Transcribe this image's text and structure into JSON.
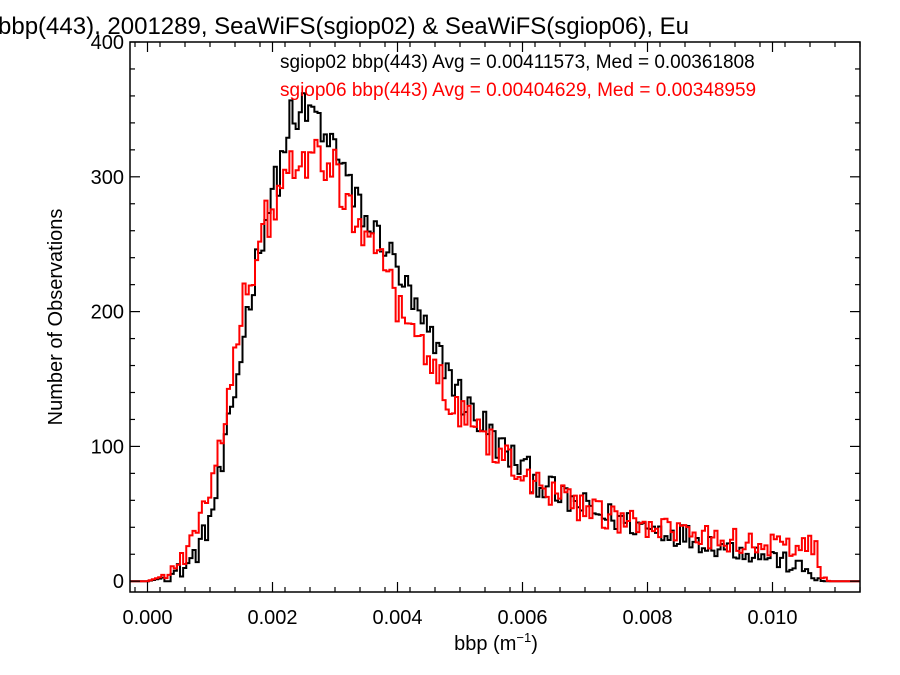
{
  "chart_data": {
    "type": "line",
    "style": "step-histogram",
    "title": "bbp(443), 2001289, SeaWiFS(sgiop02) & SeaWiFS(sgiop06), Eu",
    "xlabel_main": "bbp (m",
    "xlabel_sup": "−1",
    "xlabel_close": ")",
    "ylabel": "Number of Observations",
    "xlim": [
      -0.00028,
      0.0114
    ],
    "ylim": [
      -8,
      400
    ],
    "xticks": [
      0.0,
      0.002,
      0.004,
      0.006,
      0.008,
      0.01
    ],
    "xtick_labels": [
      "0.000",
      "0.002",
      "0.004",
      "0.006",
      "0.008",
      "0.010"
    ],
    "yticks": [
      0,
      100,
      200,
      300,
      400
    ],
    "ytick_labels": [
      "0",
      "100",
      "200",
      "300",
      "400"
    ],
    "grid": false,
    "legend_position": "top-right",
    "legend": [
      "sgiop02 bbp(443) Avg = 0.00411573, Med = 0.00361808",
      "sgiop06 bbp(443) Avg = 0.00404629, Med = 0.00348959"
    ],
    "series": [
      {
        "name": "sgiop02",
        "color": "#000000",
        "x": [
          -0.0003,
          0.0,
          0.0002,
          0.0004,
          0.0006,
          0.0008,
          0.001,
          0.0012,
          0.0014,
          0.0016,
          0.0018,
          0.002,
          0.0021,
          0.0022,
          0.0023,
          0.0024,
          0.0025,
          0.0026,
          0.0027,
          0.0028,
          0.0029,
          0.003,
          0.0031,
          0.0032,
          0.0033,
          0.0034,
          0.0035,
          0.0036,
          0.0037,
          0.0038,
          0.0039,
          0.004,
          0.0042,
          0.0044,
          0.0046,
          0.0048,
          0.005,
          0.0052,
          0.0054,
          0.0056,
          0.0058,
          0.006,
          0.0062,
          0.0064,
          0.0066,
          0.0068,
          0.007,
          0.0072,
          0.0074,
          0.0076,
          0.0078,
          0.008,
          0.0082,
          0.0084,
          0.0086,
          0.0088,
          0.009,
          0.0092,
          0.0094,
          0.0096,
          0.0098,
          0.01,
          0.0102,
          0.0104,
          0.0106,
          0.0107,
          0.0108,
          0.011,
          0.0114
        ],
        "values": [
          0,
          0,
          2,
          5,
          10,
          22,
          45,
          85,
          140,
          200,
          250,
          290,
          300,
          325,
          345,
          330,
          360,
          340,
          350,
          330,
          320,
          330,
          310,
          300,
          280,
          280,
          265,
          262,
          255,
          252,
          240,
          232,
          210,
          190,
          172,
          158,
          138,
          125,
          115,
          102,
          92,
          85,
          75,
          70,
          62,
          58,
          55,
          50,
          48,
          45,
          42,
          40,
          38,
          36,
          34,
          31,
          28,
          26,
          24,
          22,
          20,
          18,
          14,
          10,
          7,
          4,
          0,
          0,
          0
        ]
      },
      {
        "name": "sgiop06",
        "color": "#ff0000",
        "x": [
          -0.0003,
          0.0,
          0.0002,
          0.0004,
          0.0006,
          0.0008,
          0.001,
          0.0012,
          0.0014,
          0.0016,
          0.0017,
          0.0018,
          0.0019,
          0.002,
          0.0021,
          0.0022,
          0.0023,
          0.0024,
          0.0025,
          0.0026,
          0.0027,
          0.0028,
          0.0029,
          0.003,
          0.0031,
          0.0032,
          0.0033,
          0.0034,
          0.0035,
          0.0036,
          0.0037,
          0.0038,
          0.0039,
          0.004,
          0.0042,
          0.0044,
          0.0046,
          0.0048,
          0.005,
          0.0052,
          0.0054,
          0.0056,
          0.0058,
          0.006,
          0.0062,
          0.0064,
          0.0066,
          0.0068,
          0.007,
          0.0072,
          0.0074,
          0.0076,
          0.0078,
          0.008,
          0.0082,
          0.0084,
          0.0086,
          0.0088,
          0.009,
          0.0092,
          0.0094,
          0.0096,
          0.0098,
          0.01,
          0.0102,
          0.0104,
          0.0106,
          0.0107,
          0.0108,
          0.0109,
          0.011,
          0.0114
        ],
        "values": [
          0,
          0,
          3,
          8,
          18,
          40,
          70,
          115,
          170,
          225,
          232,
          255,
          270,
          262,
          290,
          298,
          310,
          295,
          315,
          305,
          318,
          300,
          308,
          315,
          280,
          290,
          268,
          262,
          262,
          250,
          245,
          232,
          222,
          205,
          190,
          170,
          155,
          140,
          128,
          118,
          108,
          98,
          90,
          82,
          74,
          68,
          62,
          57,
          53,
          50,
          46,
          44,
          42,
          40,
          38,
          36,
          34,
          33,
          32,
          30,
          30,
          29,
          28,
          27,
          27,
          26,
          26,
          25,
          5,
          0,
          0,
          0
        ]
      }
    ]
  }
}
